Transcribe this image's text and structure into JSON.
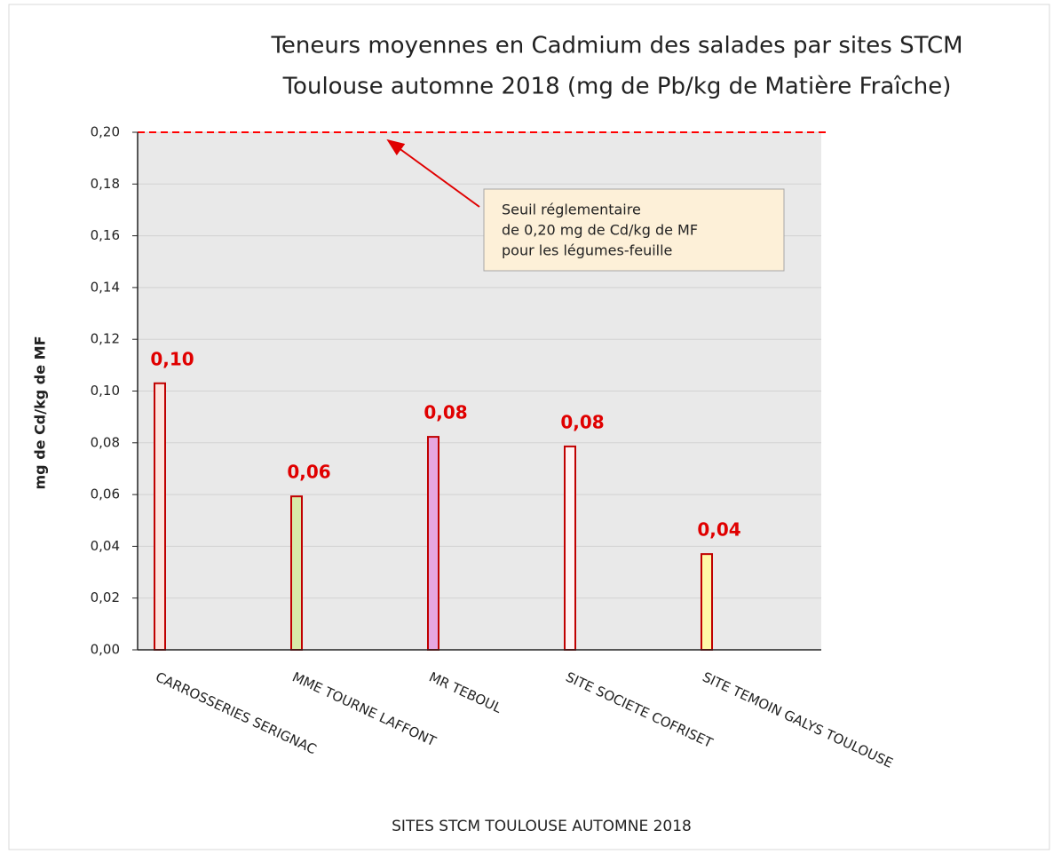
{
  "chart_data": {
    "type": "bar",
    "title": [
      "Teneurs moyennes en Cadmium des salades par sites STCM",
      "Toulouse automne 2018 (mg de Pb/kg de Matière Fraîche)"
    ],
    "ylabel": "mg de Cd/kg de MF",
    "xlabel": "SITES STCM TOULOUSE AUTOMNE 2018",
    "categories": [
      "CARROSSERIES SERIGNAC",
      "MME TOURNE LAFFONT",
      "MR TEBOUL",
      "SITE SOCIETE COFRISET",
      "SITE TEMOIN GALYS TOULOUSE"
    ],
    "values": [
      0.103,
      0.0593,
      0.0823,
      0.0786,
      0.037
    ],
    "value_labels": [
      "0,10",
      "0,06",
      "0,08",
      "0,08",
      "0,04"
    ],
    "colors": [
      "#fde2dc",
      "#d8eaa8",
      "#e6a6e0",
      "#fff2f2",
      "#fff9a8"
    ],
    "edge_color": "#c00000",
    "ylim": [
      0,
      0.2
    ],
    "yticks": [
      {
        "value": 0,
        "label": "0,00"
      },
      {
        "value": 0.02,
        "label": "0,02"
      },
      {
        "value": 0.04,
        "label": "0,04"
      },
      {
        "value": 0.06,
        "label": "0,06"
      },
      {
        "value": 0.08,
        "label": "0,08"
      },
      {
        "value": 0.1,
        "label": "0,10"
      },
      {
        "value": 0.12,
        "label": "0,12"
      },
      {
        "value": 0.14,
        "label": "0,14"
      },
      {
        "value": 0.16,
        "label": "0,16"
      },
      {
        "value": 0.18,
        "label": "0,18"
      },
      {
        "value": 0.2,
        "label": "0,20"
      }
    ],
    "grid": true,
    "reference_line": {
      "value": 0.2,
      "color": "#ff0000"
    },
    "annotation": [
      "Seuil réglementaire",
      "de 0,20 mg de Cd/kg de MF",
      "pour les légumes-feuille"
    ]
  }
}
